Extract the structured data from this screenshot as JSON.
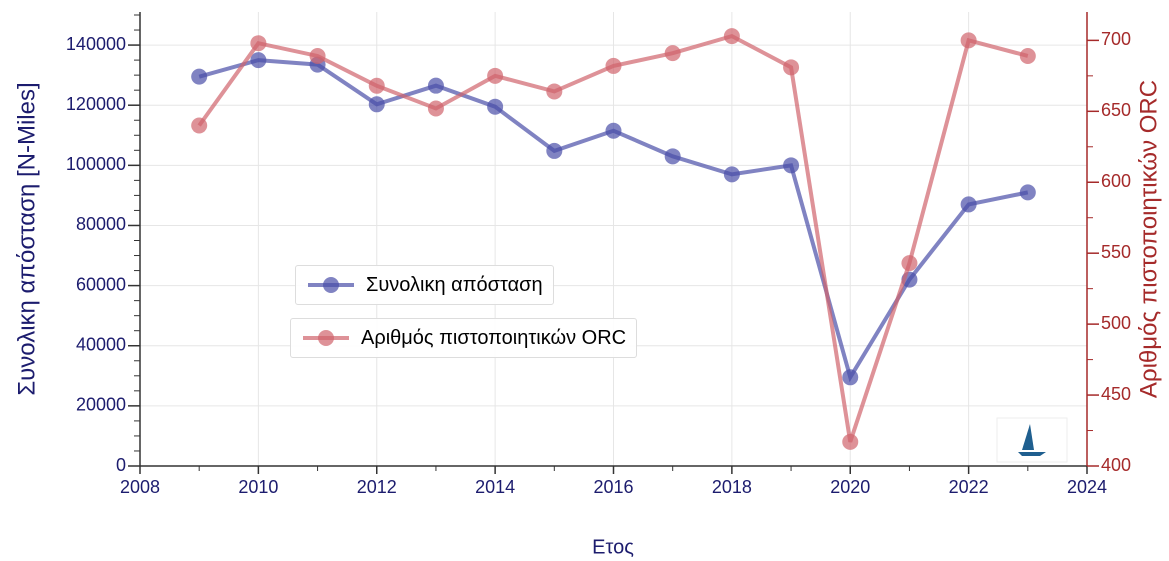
{
  "chart_data": {
    "type": "line",
    "x_label": "Ετος",
    "y_label": "Συνολικη απόσταση [N-Miles]",
    "y2_label": "Αριθμός πιστοποιητικών ORC",
    "x": [
      2009,
      2010,
      2011,
      2012,
      2013,
      2014,
      2015,
      2016,
      2017,
      2018,
      2019,
      2020,
      2021,
      2022,
      2023
    ],
    "series": [
      {
        "name": "Συνολικη απόσταση",
        "color": "#4a4fa8",
        "axis": "y",
        "values": [
          129500,
          135000,
          133500,
          120300,
          126500,
          119500,
          104800,
          111500,
          103000,
          97000,
          100000,
          29500,
          62000,
          87000,
          91000
        ]
      },
      {
        "name": "Αριθμός πιστοποιητικών ORC",
        "color": "#d0646c",
        "axis": "y2",
        "values": [
          640,
          698,
          689,
          668,
          652,
          675,
          664,
          682,
          691,
          703,
          681,
          417,
          543,
          700,
          689
        ]
      }
    ],
    "xlim": [
      2008,
      2024
    ],
    "xticks": [
      2008,
      2010,
      2012,
      2014,
      2016,
      2018,
      2020,
      2022,
      2024
    ],
    "ylim": [
      0,
      151000
    ],
    "yticks": [
      0,
      20000,
      40000,
      60000,
      80000,
      100000,
      120000,
      140000
    ],
    "y2lim": [
      400,
      720
    ],
    "y2ticks": [
      400,
      450,
      500,
      550,
      600,
      650,
      700
    ],
    "grid": true
  }
}
